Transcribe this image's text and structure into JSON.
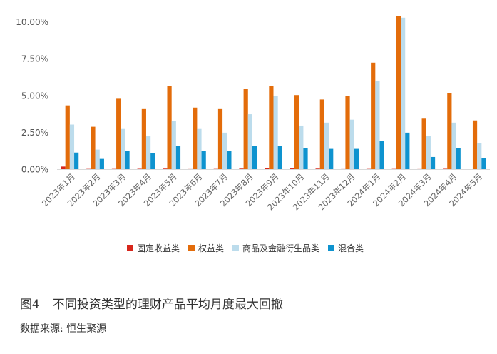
{
  "chart_data": {
    "type": "bar",
    "categories": [
      "2023年1月",
      "2023年2月",
      "2023年3月",
      "2023年4月",
      "2023年5月",
      "2023年6月",
      "2023年7月",
      "2023年8月",
      "2023年9月",
      "2023年10月",
      "2023年11月",
      "2023年12月",
      "2024年1月",
      "2024年2月",
      "2024年3月",
      "2024年4月",
      "2024年5月"
    ],
    "series": [
      {
        "name": "固定收益类",
        "color": "#d7261b",
        "values": [
          0.2,
          0.04,
          0.04,
          0.05,
          0.06,
          0.03,
          0.04,
          0.06,
          0.09,
          0.07,
          0.06,
          0.03,
          0.04,
          0.04,
          0.03,
          0.05,
          0.02
        ]
      },
      {
        "name": "权益类",
        "color": "#e36c0a",
        "values": [
          4.35,
          2.9,
          4.8,
          4.1,
          5.65,
          4.2,
          4.1,
          5.45,
          5.65,
          5.05,
          4.75,
          4.98,
          7.25,
          10.4,
          3.45,
          5.18,
          3.33
        ]
      },
      {
        "name": "商品及金融衍生品类",
        "color": "#bcdcec",
        "values": [
          3.05,
          1.35,
          2.75,
          2.25,
          3.3,
          2.75,
          2.5,
          3.75,
          4.98,
          2.98,
          3.18,
          3.38,
          6.0,
          10.3,
          2.3,
          3.18,
          1.8
        ]
      },
      {
        "name": "混合类",
        "color": "#0e93cf",
        "values": [
          1.15,
          0.72,
          1.25,
          1.1,
          1.58,
          1.25,
          1.27,
          1.62,
          1.62,
          1.45,
          1.4,
          1.4,
          1.92,
          2.5,
          0.85,
          1.45,
          0.75
        ]
      }
    ],
    "yticks": [
      "0.00%",
      "2.50%",
      "5.00%",
      "7.50%",
      "10.00%"
    ],
    "ylim": [
      0,
      10.5
    ],
    "grid": false,
    "legend_position": "bottom"
  },
  "caption": {
    "number": "图4",
    "title": "不同投资类型的理财产品平均月度最大回撤"
  },
  "source": "数据来源: 恒生聚源"
}
